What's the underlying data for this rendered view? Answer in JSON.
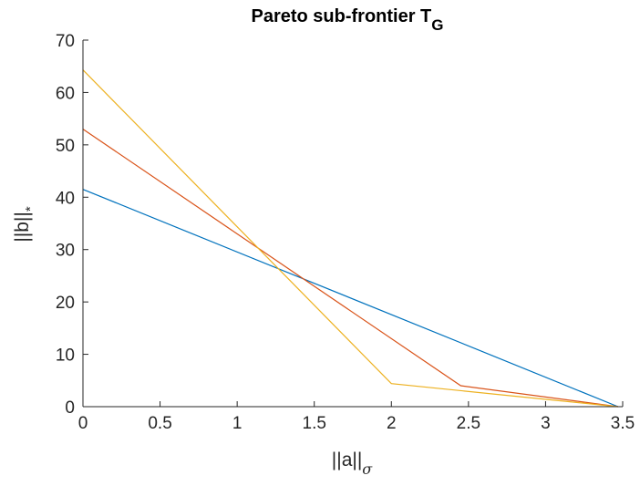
{
  "chart_data": {
    "type": "line",
    "title": "Pareto sub-frontier T",
    "title_subscript": "G",
    "xlabel": "||a||",
    "xlabel_subscript": "σ",
    "ylabel": "||b||",
    "ylabel_subscript": "*",
    "xlim": [
      0,
      3.5
    ],
    "ylim": [
      0,
      70
    ],
    "xticks": [
      0,
      0.5,
      1,
      1.5,
      2,
      2.5,
      3,
      3.5
    ],
    "xtick_labels": [
      "0",
      "0.5",
      "1",
      "1.5",
      "2",
      "2.5",
      "3",
      "3.5"
    ],
    "yticks": [
      0,
      10,
      20,
      30,
      40,
      50,
      60,
      70
    ],
    "ytick_labels": [
      "0",
      "10",
      "20",
      "30",
      "40",
      "50",
      "60",
      "70"
    ],
    "grid": false,
    "series": [
      {
        "color": "#0072BD",
        "x": [
          0,
          3.47
        ],
        "y": [
          41.5,
          0
        ]
      },
      {
        "color": "#D95319",
        "x": [
          0,
          2.45,
          3.47
        ],
        "y": [
          53,
          4,
          0
        ]
      },
      {
        "color": "#EDB120",
        "x": [
          0,
          2.0,
          3.47
        ],
        "y": [
          64.3,
          4.4,
          0
        ]
      }
    ]
  }
}
